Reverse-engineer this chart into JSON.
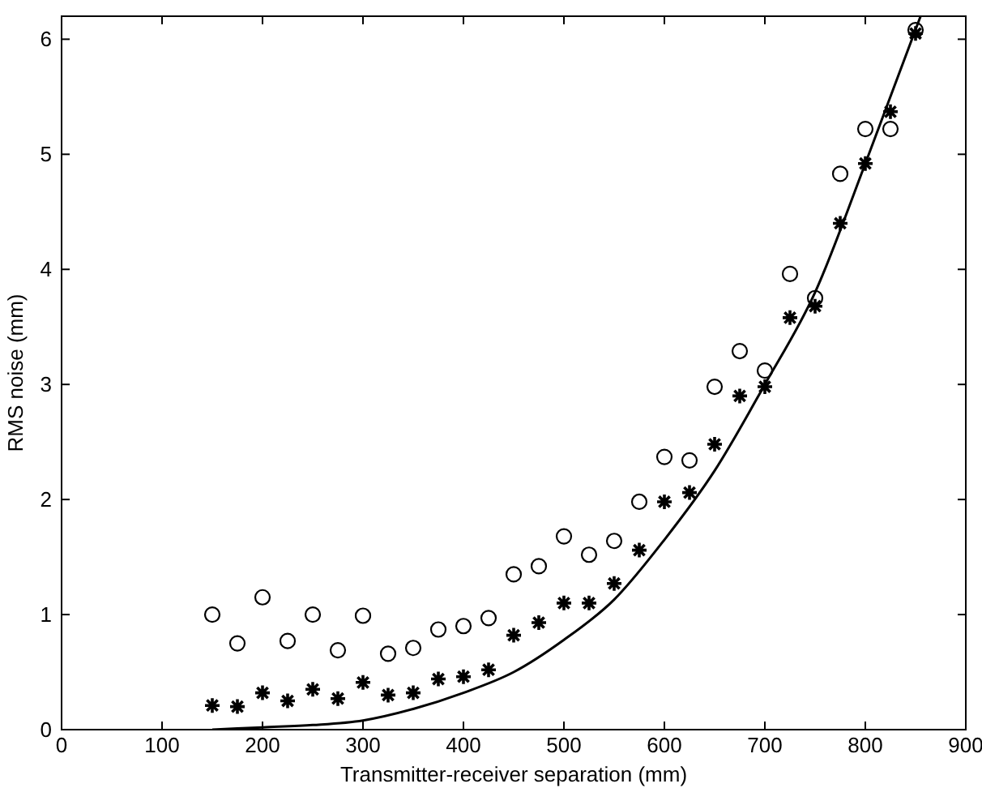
{
  "chart_data": {
    "type": "scatter",
    "xlabel": "Transmitter-receiver separation (mm)",
    "ylabel": "RMS noise (mm)",
    "xlim": [
      0,
      900
    ],
    "xticks": [
      0,
      100,
      200,
      300,
      400,
      500,
      600,
      700,
      800,
      900
    ],
    "ylim": [
      0,
      6.2
    ],
    "yticks": [
      0,
      1,
      2,
      3,
      4,
      5,
      6
    ],
    "grid": false,
    "series": [
      {
        "marker": "circle",
        "color": "#000000",
        "x": [
          150,
          175,
          200,
          225,
          250,
          275,
          300,
          325,
          350,
          375,
          400,
          425,
          450,
          475,
          500,
          525,
          550,
          575,
          600,
          625,
          650,
          675,
          700,
          725,
          750,
          775,
          800,
          825,
          850
        ],
        "values": [
          1.0,
          0.75,
          1.15,
          0.77,
          1.0,
          0.69,
          0.99,
          0.66,
          0.71,
          0.87,
          0.9,
          0.97,
          1.35,
          1.42,
          1.68,
          1.52,
          1.64,
          1.98,
          2.37,
          2.34,
          2.98,
          3.29,
          3.12,
          3.96,
          3.75,
          4.83,
          5.22,
          5.22,
          6.08
        ]
      },
      {
        "marker": "cross",
        "color": "#000000",
        "x": [
          150,
          175,
          200,
          225,
          250,
          275,
          300,
          325,
          350,
          375,
          400,
          425,
          450,
          475,
          500,
          525,
          550,
          575,
          600,
          625,
          650,
          675,
          700,
          725,
          750,
          775,
          800,
          825,
          850
        ],
        "values": [
          0.21,
          0.2,
          0.32,
          0.25,
          0.35,
          0.27,
          0.41,
          0.3,
          0.32,
          0.44,
          0.46,
          0.52,
          0.82,
          0.93,
          1.1,
          1.1,
          1.27,
          1.56,
          1.98,
          2.06,
          2.48,
          2.9,
          2.98,
          3.58,
          3.68,
          4.4,
          4.92,
          5.37,
          6.05
        ]
      },
      {
        "type": "line",
        "marker": "none",
        "line_style": "solid",
        "color": "#000000",
        "x": [
          150,
          200,
          250,
          300,
          350,
          400,
          450,
          500,
          550,
          600,
          650,
          700,
          750,
          800,
          855
        ],
        "values": [
          0,
          0.02,
          0.04,
          0.08,
          0.18,
          0.32,
          0.5,
          0.78,
          1.13,
          1.65,
          2.25,
          3.0,
          3.8,
          4.92,
          6.2
        ]
      }
    ]
  }
}
